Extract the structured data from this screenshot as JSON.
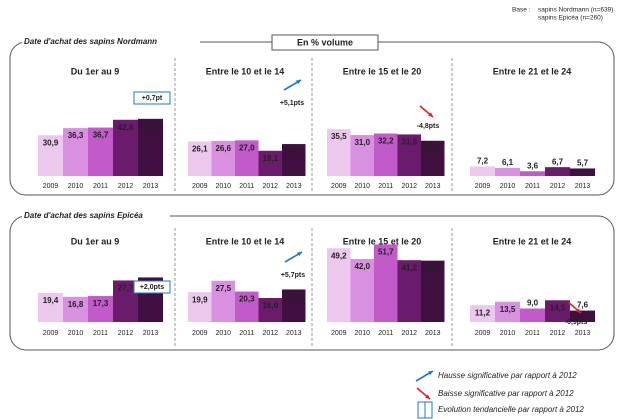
{
  "base_label": "Base :",
  "base_lines": [
    "sapins Nordmann (n=639)",
    "sapins Epicéa (n=260)"
  ],
  "header": "En % volume",
  "sections": [
    "Date d'achat des sapins Nordmann",
    "Date d'achat des sapins Epicéa"
  ],
  "legend": [
    {
      "kind": "up",
      "color": "#1f78c8",
      "text": "Hausse significative par rapport à 2012"
    },
    {
      "kind": "down",
      "color": "#e02020",
      "text": "Baisse significative par rapport à 2012"
    },
    {
      "kind": "box",
      "color": "#1f78c8",
      "text": "Evolution tendancielle par rapport à 2012"
    }
  ],
  "chart_data": [
    {
      "type": "bar",
      "title": "Du 1er au 9",
      "categories": [
        "2009",
        "2010",
        "2011",
        "2012",
        "2013"
      ],
      "values": [
        30.9,
        36.3,
        36.7,
        42.6,
        43.3
      ],
      "value_labels": [
        "30,9",
        "36,3",
        "36,7",
        "42,6",
        "43,3"
      ],
      "colors": [
        "#edc8ee",
        "#da90e0",
        "#c25ac9",
        "#6b1b6b",
        "#3f0f40"
      ],
      "annotation": {
        "kind": "box",
        "color": "#1f78c8",
        "text": "+0,7pt"
      }
    },
    {
      "type": "bar",
      "title": "Entre le 10 et le 14",
      "categories": [
        "2009",
        "2010",
        "2011",
        "2012",
        "2013"
      ],
      "values": [
        26.1,
        26.6,
        27.0,
        19.1,
        24.2
      ],
      "value_labels": [
        "26,1",
        "26,6",
        "27,0",
        "19,1",
        "24,2"
      ],
      "colors": [
        "#edc8ee",
        "#da90e0",
        "#c25ac9",
        "#6b1b6b",
        "#3f0f40"
      ],
      "annotation": {
        "kind": "up",
        "color": "#1f78c8",
        "text": "+5,1pts"
      }
    },
    {
      "type": "bar",
      "title": "Entre le 15 et le 20",
      "categories": [
        "2009",
        "2010",
        "2011",
        "2012",
        "2013"
      ],
      "values": [
        35.5,
        31.0,
        32.2,
        31.5,
        26.7
      ],
      "value_labels": [
        "35,5",
        "31,0",
        "32,2",
        "31,5",
        "26,7"
      ],
      "colors": [
        "#edc8ee",
        "#da90e0",
        "#c25ac9",
        "#6b1b6b",
        "#3f0f40"
      ],
      "annotation": {
        "kind": "down",
        "color": "#e02020",
        "text": "-4,8pts"
      }
    },
    {
      "type": "bar",
      "title": "Entre le 21 et le 24",
      "categories": [
        "2009",
        "2010",
        "2011",
        "2012",
        "2013"
      ],
      "values": [
        7.2,
        6.1,
        3.6,
        6.7,
        5.7
      ],
      "value_labels": [
        "7,2",
        "6,1",
        "3,6",
        "6,7",
        "5,7"
      ],
      "colors": [
        "#edc8ee",
        "#da90e0",
        "#c25ac9",
        "#6b1b6b",
        "#3f0f40"
      ]
    },
    {
      "type": "bar",
      "title": "Du 1er au 9",
      "categories": [
        "2009",
        "2010",
        "2011",
        "2012",
        "2013"
      ],
      "values": [
        19.4,
        16.8,
        17.3,
        27.7,
        29.7
      ],
      "value_labels": [
        "19,4",
        "16,8",
        "17,3",
        "27,7",
        "29,7"
      ],
      "colors": [
        "#edc8ee",
        "#da90e0",
        "#c25ac9",
        "#6b1b6b",
        "#3f0f40"
      ],
      "annotation": {
        "kind": "box",
        "color": "#1f78c8",
        "text": "+2,0pts"
      }
    },
    {
      "type": "bar",
      "title": "Entre le 10 et le 14",
      "categories": [
        "2009",
        "2010",
        "2011",
        "2012",
        "2013"
      ],
      "values": [
        19.9,
        27.5,
        20.3,
        16.0,
        21.7
      ],
      "value_labels": [
        "19,9",
        "27,5",
        "20,3",
        "16,0",
        "21,7"
      ],
      "colors": [
        "#edc8ee",
        "#da90e0",
        "#c25ac9",
        "#6b1b6b",
        "#3f0f40"
      ],
      "annotation": {
        "kind": "up",
        "color": "#1f78c8",
        "text": "+5,7pts"
      }
    },
    {
      "type": "bar",
      "title": "Entre le 15 et le 20",
      "categories": [
        "2009",
        "2010",
        "2011",
        "2012",
        "2013"
      ],
      "values": [
        49.2,
        42.0,
        51.7,
        41.2,
        40.9
      ],
      "value_labels": [
        "49,2",
        "42,0",
        "51,7",
        "41,2",
        "40,9"
      ],
      "colors": [
        "#edc8ee",
        "#da90e0",
        "#c25ac9",
        "#6b1b6b",
        "#3f0f40"
      ]
    },
    {
      "type": "bar",
      "title": "Entre le 21 et le 24",
      "categories": [
        "2009",
        "2010",
        "2011",
        "2012",
        "2013"
      ],
      "values": [
        11.2,
        13.5,
        9.0,
        14.5,
        7.6
      ],
      "value_labels": [
        "11,2",
        "13,5",
        "9,0",
        "14,5",
        "7,6"
      ],
      "colors": [
        "#edc8ee",
        "#da90e0",
        "#c25ac9",
        "#6b1b6b",
        "#3f0f40"
      ],
      "annotation": {
        "kind": "down",
        "color": "#e02020",
        "text": "-6,9pts"
      }
    }
  ]
}
